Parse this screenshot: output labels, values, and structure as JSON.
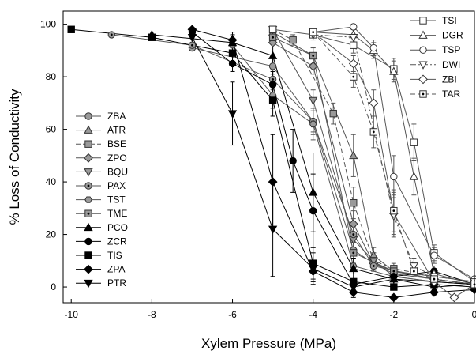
{
  "chart_data": {
    "type": "line",
    "title": "",
    "xlabel": "Xylem Pressure (MPa)",
    "ylabel": "% Loss of Conductivity",
    "xlim": [
      -10.2,
      0
    ],
    "ylim": [
      -6,
      105
    ],
    "xticks": [
      -10,
      -8,
      -6,
      -4,
      -2,
      0
    ],
    "xtick_labels": [
      "-10",
      "-8",
      "-6",
      "-4",
      "-2",
      "0"
    ],
    "yticks": [
      0,
      20,
      40,
      60,
      80,
      100
    ],
    "ytick_labels": [
      "0",
      "20",
      "40",
      "60",
      "80",
      "100"
    ],
    "grid": false,
    "legends": [
      {
        "placement": "left-middle",
        "entries": [
          "ZBA",
          "ATR",
          "BSE",
          "ZPO",
          "BQU",
          "PAX",
          "TST",
          "TME",
          "PCO",
          "ZCR",
          "TIS",
          "ZPA",
          "PTR"
        ]
      },
      {
        "placement": "top-right",
        "entries": [
          "TSI",
          "DGR",
          "TSP",
          "DWI",
          "ZBI",
          "TAR"
        ]
      }
    ],
    "series": [
      {
        "name": "ZBA",
        "marker": "circle",
        "fill": "#9a9a9a",
        "line": "solid",
        "color": "#555555",
        "x": [
          -7,
          -5,
          -4,
          -3,
          -2.5,
          -2,
          -1,
          0
        ],
        "y": [
          91,
          84,
          63,
          14,
          9,
          6,
          3,
          1
        ],
        "err": [
          0,
          3,
          4,
          5,
          2,
          2,
          1,
          0
        ]
      },
      {
        "name": "ATR",
        "marker": "triangle-up",
        "fill": "#9a9a9a",
        "line": "solid",
        "color": "#555555",
        "x": [
          -5,
          -4,
          -3,
          -2.5,
          -2,
          -1,
          0
        ],
        "y": [
          97,
          88,
          50,
          12,
          6,
          4,
          2
        ],
        "err": [
          0,
          3,
          8,
          3,
          2,
          1,
          0
        ]
      },
      {
        "name": "BSE",
        "marker": "square",
        "fill": "#9a9a9a",
        "line": "dashed",
        "color": "#555555",
        "x": [
          -5,
          -4.5,
          -3.5,
          -3,
          -2.5,
          -2,
          -1,
          0
        ],
        "y": [
          98,
          94,
          66,
          32,
          10,
          7,
          4,
          2
        ],
        "err": [
          0,
          2,
          4,
          6,
          3,
          2,
          1,
          0
        ]
      },
      {
        "name": "ZPO",
        "marker": "diamond",
        "fill": "#9a9a9a",
        "line": "solid",
        "color": "#555555",
        "x": [
          -5,
          -4,
          -3,
          -2.5,
          -2,
          -1,
          0
        ],
        "y": [
          93,
          84,
          24,
          9,
          5,
          3,
          1
        ],
        "err": [
          0,
          3,
          5,
          3,
          2,
          1,
          0
        ]
      },
      {
        "name": "BQU",
        "marker": "triangle-down",
        "fill": "#9a9a9a",
        "line": "solid",
        "color": "#555555",
        "x": [
          -5,
          -4,
          -3,
          -2.5,
          -2,
          -1,
          0
        ],
        "y": [
          98,
          71,
          18,
          10,
          4,
          2,
          1
        ],
        "err": [
          0,
          4,
          5,
          3,
          2,
          1,
          0
        ]
      },
      {
        "name": "PAX",
        "marker": "circle-dot",
        "fill": "#9a9a9a",
        "line": "solid",
        "color": "#555555",
        "x": [
          -9,
          -7,
          -5,
          -4,
          -3,
          -2.5,
          -1,
          0
        ],
        "y": [
          96,
          92,
          79,
          63,
          20,
          8,
          3,
          1
        ],
        "err": [
          0,
          0,
          4,
          5,
          5,
          2,
          1,
          0
        ]
      },
      {
        "name": "TST",
        "marker": "hexagon",
        "fill": "#9a9a9a",
        "line": "solid",
        "color": "#555555",
        "x": [
          -6,
          -5,
          -4,
          -3,
          -2,
          -1,
          0
        ],
        "y": [
          92,
          73,
          62,
          8,
          4,
          2,
          1
        ],
        "err": [
          0,
          5,
          6,
          3,
          1,
          1,
          0
        ]
      },
      {
        "name": "TME",
        "marker": "square-dot",
        "fill": "#9a9a9a",
        "line": "solid",
        "color": "#555555",
        "x": [
          -5,
          -4,
          -3,
          -2,
          -1,
          0
        ],
        "y": [
          95,
          88,
          13,
          6,
          3,
          1
        ],
        "err": [
          0,
          3,
          4,
          2,
          1,
          0
        ]
      },
      {
        "name": "PCO",
        "marker": "triangle-up",
        "fill": "#000000",
        "line": "solid",
        "color": "#000000",
        "x": [
          -8,
          -6,
          -5,
          -4,
          -3,
          -2,
          -1,
          0
        ],
        "y": [
          96,
          93,
          88,
          36,
          7,
          3,
          2,
          1
        ],
        "err": [
          0,
          3,
          5,
          15,
          4,
          1,
          1,
          0
        ]
      },
      {
        "name": "ZCR",
        "marker": "circle",
        "fill": "#000000",
        "line": "solid",
        "color": "#000000",
        "x": [
          -7,
          -6,
          -5,
          -4.5,
          -4,
          -3,
          -2,
          -1,
          0
        ],
        "y": [
          97,
          85,
          77,
          48,
          29,
          1,
          4,
          6,
          1
        ],
        "err": [
          0,
          3,
          5,
          12,
          14,
          2,
          2,
          2,
          0
        ]
      },
      {
        "name": "TIS",
        "marker": "square",
        "fill": "#000000",
        "line": "solid",
        "color": "#000000",
        "x": [
          -10,
          -8,
          -6,
          -5,
          -4,
          -3,
          -2,
          -1,
          0
        ],
        "y": [
          98,
          95,
          89,
          71,
          9,
          2,
          0,
          1,
          0
        ],
        "err": [
          0,
          0,
          4,
          6,
          6,
          1,
          1,
          1,
          0
        ]
      },
      {
        "name": "ZPA",
        "marker": "diamond",
        "fill": "#000000",
        "line": "solid",
        "color": "#000000",
        "x": [
          -7,
          -6,
          -5,
          -4,
          -3,
          -2,
          -1,
          0
        ],
        "y": [
          98,
          94,
          40,
          6,
          -2,
          -4,
          -2,
          -1
        ],
        "err": [
          0,
          3,
          18,
          4,
          2,
          1,
          1,
          0
        ]
      },
      {
        "name": "PTR",
        "marker": "triangle-down",
        "fill": "#000000",
        "line": "solid",
        "color": "#000000",
        "x": [
          -7,
          -6,
          -5,
          -4,
          -3,
          -2,
          -1,
          0
        ],
        "y": [
          95,
          66,
          22,
          7,
          0,
          3,
          0,
          1
        ],
        "err": [
          0,
          12,
          18,
          6,
          2,
          2,
          1,
          0
        ]
      },
      {
        "name": "TSI",
        "marker": "square",
        "fill": "#ffffff",
        "line": "solid",
        "color": "#555555",
        "x": [
          -5,
          -4,
          -3,
          -2,
          -1.5,
          -1,
          0
        ],
        "y": [
          98,
          96,
          92,
          83,
          55,
          13,
          2
        ],
        "err": [
          0,
          2,
          3,
          4,
          7,
          3,
          0
        ]
      },
      {
        "name": "DGR",
        "marker": "triangle-up",
        "fill": "#ffffff",
        "line": "solid",
        "color": "#555555",
        "x": [
          -4,
          -3,
          -2.5,
          -2,
          -1.5,
          -1,
          0
        ],
        "y": [
          97,
          96,
          90,
          82,
          42,
          5,
          1
        ],
        "err": [
          0,
          2,
          3,
          4,
          7,
          2,
          0
        ]
      },
      {
        "name": "TSP",
        "marker": "circle",
        "fill": "#ffffff",
        "line": "solid",
        "color": "#555555",
        "x": [
          -4,
          -3,
          -2.5,
          -2,
          -1,
          0
        ],
        "y": [
          97,
          99,
          91,
          42,
          12,
          3
        ],
        "err": [
          0,
          1,
          3,
          8,
          3,
          0
        ]
      },
      {
        "name": "DWI",
        "marker": "triangle-down",
        "fill": "#ffffff",
        "line": "dashdot",
        "color": "#555555",
        "x": [
          -4,
          -3,
          -2,
          -1.5,
          -1,
          0
        ],
        "y": [
          96,
          95,
          27,
          8,
          4,
          2
        ],
        "err": [
          0,
          3,
          8,
          3,
          1,
          0
        ]
      },
      {
        "name": "ZBI",
        "marker": "diamond",
        "fill": "#ffffff",
        "line": "solid",
        "color": "#555555",
        "x": [
          -4,
          -3,
          -2.5,
          -2,
          -1,
          -0.5,
          0
        ],
        "y": [
          97,
          85,
          70,
          28,
          2,
          -4,
          1
        ],
        "err": [
          0,
          3,
          5,
          8,
          2,
          1,
          0
        ]
      },
      {
        "name": "TAR",
        "marker": "square-dot",
        "fill": "#ffffff",
        "line": "dashed",
        "color": "#555555",
        "x": [
          -4,
          -3,
          -2.5,
          -2,
          -1.5,
          -1,
          0
        ],
        "y": [
          97,
          80,
          59,
          29,
          6,
          3,
          1
        ],
        "err": [
          0,
          4,
          6,
          8,
          2,
          1,
          0
        ]
      }
    ]
  }
}
